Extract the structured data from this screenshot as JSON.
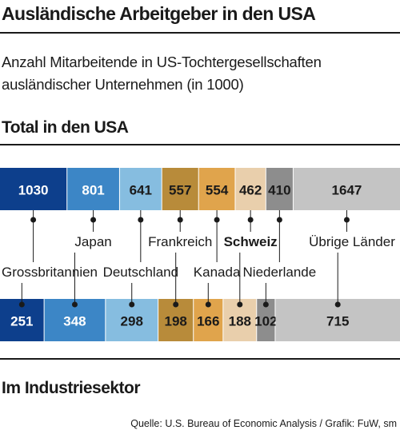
{
  "header": {
    "title": "Ausländische Arbeitgeber in den USA",
    "subtitle_line1": "Anzahl Mitarbeitende in US-Tochtergesellschaften",
    "subtitle_line2": "ausländischer Unternehmen (in 1000)"
  },
  "footer": {
    "source": "Quelle: U.S. Bureau of Economic Analysis / Grafik: FuW, sm"
  },
  "chart_data": {
    "type": "bar",
    "orientation": "horizontal-stacked",
    "categories": [
      "Grossbritannien",
      "Japan",
      "Deutschland",
      "Frankreich",
      "Kanada",
      "Schweiz",
      "Niederlande",
      "Übrige Länder"
    ],
    "highlight": "Schweiz",
    "colors": [
      "#0d3f8c",
      "#3c86c6",
      "#86bde0",
      "#b88b3a",
      "#e0a44c",
      "#e9cfac",
      "#8d8d8d",
      "#c4c4c4"
    ],
    "series": [
      {
        "name": "Total in den USA",
        "values": [
          1030,
          801,
          641,
          557,
          554,
          462,
          410,
          1647
        ]
      },
      {
        "name": "Im Industriesektor",
        "values": [
          251,
          348,
          298,
          198,
          166,
          188,
          102,
          715
        ]
      }
    ]
  }
}
